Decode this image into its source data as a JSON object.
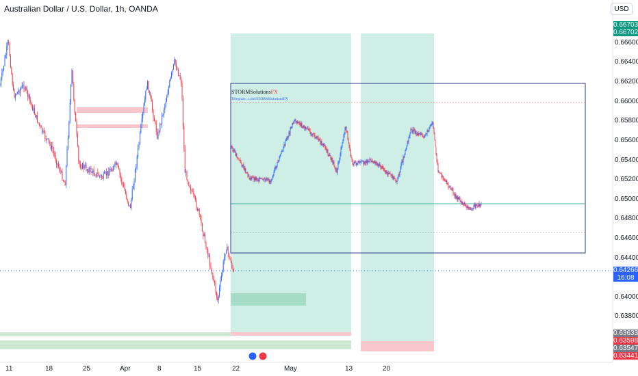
{
  "header": {
    "title": "Australian Dollar / U.S. Dollar, 1h, OANDA",
    "currency_button": "USD"
  },
  "price_axis": {
    "labels": [
      "0.66600",
      "0.66400",
      "0.66200",
      "0.66000",
      "0.65800",
      "0.65600",
      "0.65400",
      "0.65200",
      "0.65000",
      "0.64800",
      "0.64600",
      "0.64400",
      "0.64000",
      "0.63800"
    ],
    "tags": [
      {
        "top": "0.66703",
        "bottom": "0.66702",
        "color": "#089981"
      },
      {
        "top": "0.64266",
        "bottom": "16:08",
        "color": "#2962ff"
      },
      {
        "top": "0.63633",
        "bottom": "",
        "color": "#787b86"
      },
      {
        "top": "0.63598",
        "bottom": "",
        "color": "#f23645"
      },
      {
        "top": "0.63547",
        "bottom": "",
        "color": "#787b86"
      },
      {
        "top": "0.63441",
        "bottom": "",
        "color": "#f23645"
      }
    ]
  },
  "time_axis": {
    "labels": [
      "11",
      "18",
      "25",
      "Apr",
      "8",
      "15",
      "22",
      "May",
      "13",
      "20"
    ]
  },
  "inset": {
    "brand": "STORMSolutions",
    "brand_suffix": "FX",
    "telegram": "Telegram : t.me/STORMSolutionsFX"
  },
  "colors": {
    "up": "#2962ff",
    "down": "#f23645",
    "zone_green": "#a5dcc8",
    "zone_red": "#f9c6cb"
  }
}
